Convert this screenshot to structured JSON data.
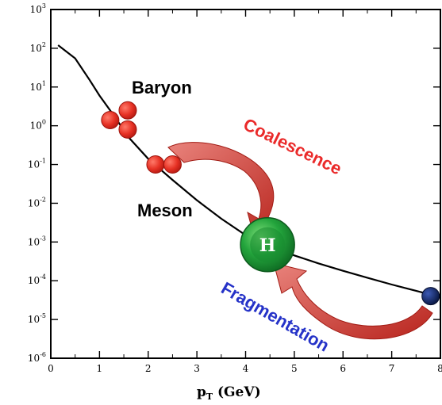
{
  "chart_data": {
    "type": "line",
    "title": "",
    "xlabel": "p_T (GeV)",
    "xlabel_main": "p",
    "xlabel_sub": "T",
    "xlabel_unit": " (GeV)",
    "ylabel": "",
    "xlim": [
      0,
      8
    ],
    "ylim_log10": [
      -6,
      3
    ],
    "y_scale": "log",
    "grid": false,
    "x_ticks": [
      0,
      1,
      2,
      3,
      4,
      5,
      6,
      7,
      8
    ],
    "y_tick_exponents": [
      -6,
      -5,
      -4,
      -3,
      -2,
      -1,
      0,
      1,
      2,
      3
    ],
    "y_tick_base": "10",
    "series": [
      {
        "x": [
          0.15,
          0.5,
          0.8,
          1.0,
          1.3,
          1.6,
          2.0,
          2.5,
          3.0,
          3.5,
          4.0,
          4.5,
          5.0,
          5.5,
          6.0,
          6.5,
          7.0,
          7.5,
          7.85
        ],
        "y": [
          120,
          55,
          15,
          6,
          1.8,
          0.5,
          0.14,
          0.04,
          0.012,
          0.004,
          0.0015,
          0.0008,
          0.00045,
          0.00028,
          0.00018,
          0.00012,
          8e-05,
          5.5e-05,
          4.2e-05
        ]
      }
    ],
    "colors": {
      "axis": "#000000",
      "curve": "#000000",
      "hadron_circle": "#e63124",
      "coalescence_text": "#ea2a2a",
      "fragmentation_text": "#2633c8",
      "arrow_fill": "#c8332b",
      "h_ball": "#1e9b3a",
      "parton_dot": "#0b1f5c"
    },
    "annotations": {
      "baryon": "Baryon",
      "meson": "Meson",
      "coalescence": "Coalescence",
      "fragmentation": "Fragmentation",
      "hadron_symbol": "H"
    },
    "markers": {
      "baryon_circles": [
        {
          "x": 1.22,
          "y": 1.4
        },
        {
          "x": 1.58,
          "y": 2.5
        },
        {
          "x": 1.58,
          "y": 0.8
        }
      ],
      "meson_circles": [
        {
          "x": 2.15,
          "y": 0.1
        },
        {
          "x": 2.5,
          "y": 0.1
        }
      ],
      "hadron_ball": {
        "x": 4.45,
        "y": 0.00085
      },
      "parton_dot": {
        "x": 7.8,
        "y": 4e-05
      }
    }
  }
}
